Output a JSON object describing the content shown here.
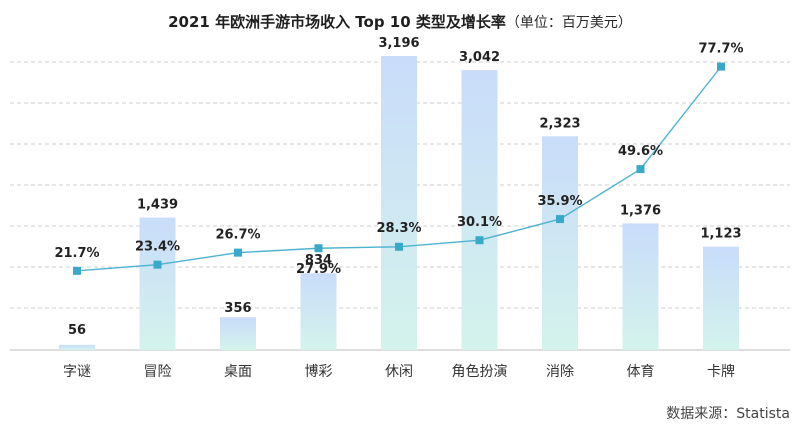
{
  "chart_data": {
    "type": "bar",
    "title": "2021 年欧洲手游市场收入 Top 10 类型及增长率",
    "unit": "（单位：百万美元）",
    "categories": [
      "字谜",
      "冒险",
      "桌面",
      "博彩",
      "休闲",
      "角色扮演",
      "消除",
      "体育",
      "卡牌"
    ],
    "series": [
      {
        "values": [
          56,
          1439,
          356,
          834,
          3196,
          3042,
          2323,
          1376,
          1123
        ]
      },
      {
        "values": [
          21.7,
          23.4,
          26.7,
          27.9,
          28.3,
          30.1,
          35.9,
          49.6,
          77.7
        ]
      }
    ],
    "bar_labels": [
      "56",
      "1,439",
      "356",
      "834",
      "3,196",
      "3,042",
      "2,323",
      "1,376",
      "1,123"
    ],
    "pct_labels": [
      "21.7%",
      "23.4%",
      "26.7%",
      "27.9%",
      "28.3%",
      "30.1%",
      "35.9%",
      "49.6%",
      "77.7%"
    ],
    "bar_ylim": [
      0,
      3500
    ],
    "pct_ylim": [
      0,
      85
    ],
    "grid": true,
    "colors": {
      "bar_top": "#c9dcfa",
      "bar_bottom": "#d4f3ec",
      "line": "#4fb3d0",
      "marker": "#38a9c9"
    },
    "source": "数据来源：Statista"
  }
}
